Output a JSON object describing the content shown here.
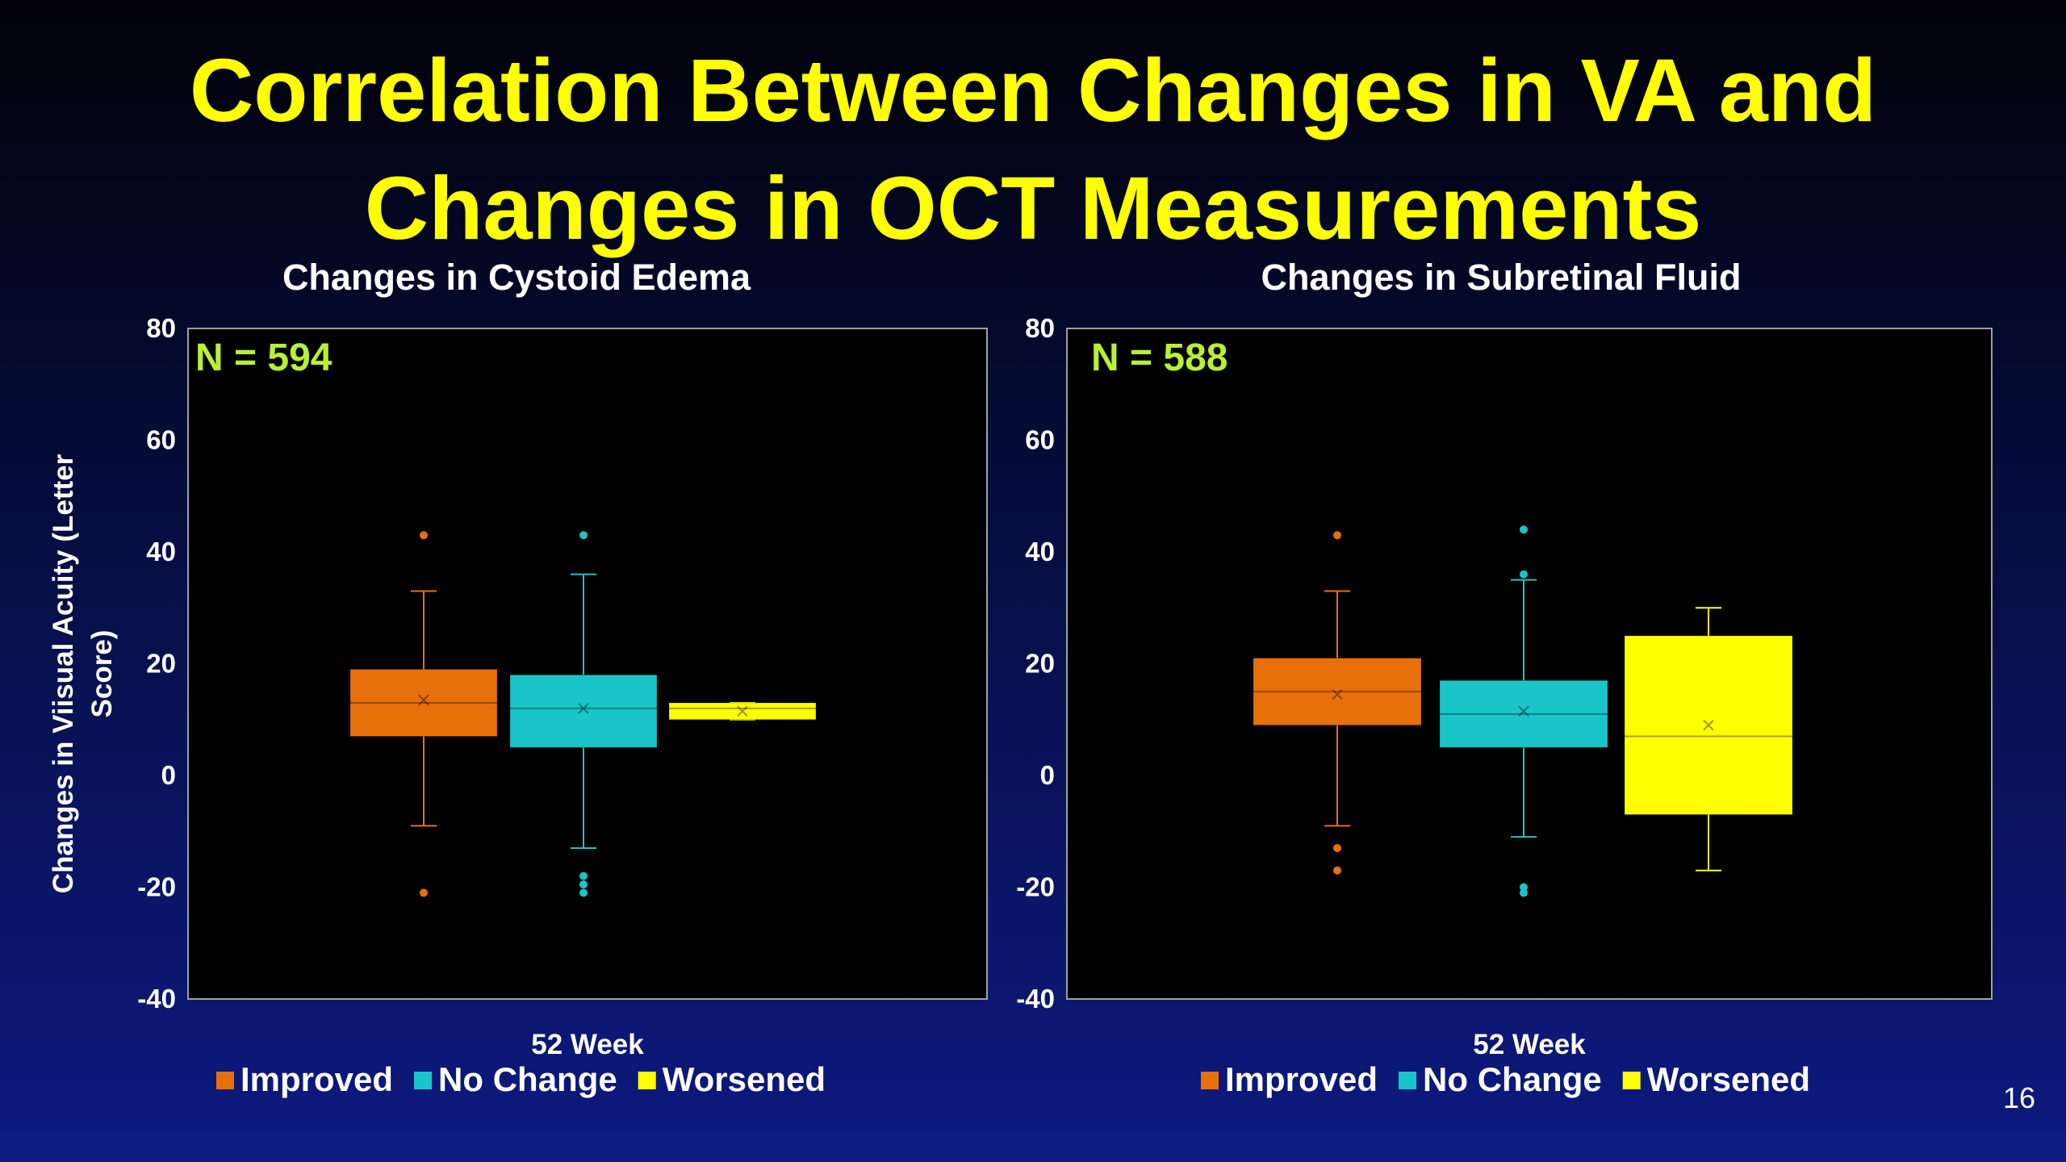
{
  "slide": {
    "title_line1": "Correlation Between Changes in VA and",
    "title_line2": "Changes in OCT Measurements",
    "page_number": "16"
  },
  "y_axis_label_line1": "Changes in Viisual Acuity  (Letter",
  "y_axis_label_line2": "Score)",
  "colors": {
    "Improved": "#e8700a",
    "No Change": "#19c5c8",
    "Worsened": "#ffff00",
    "plot_bg": "#000000",
    "axis": "#a0a0a0"
  },
  "chart_data": [
    {
      "type": "box",
      "title": "Changes in Cystoid Edema",
      "annotation": "N = 594",
      "xlabel": "52 Week",
      "ylim": [
        -40,
        80
      ],
      "yticks": [
        80,
        60,
        40,
        20,
        0,
        -20,
        -40
      ],
      "legend": [
        "Improved",
        "No Change",
        "Worsened"
      ],
      "legend_position": "bottom",
      "series": [
        {
          "name": "Improved",
          "whisker_low": -9,
          "q1": 7,
          "median": 13,
          "q3": 19,
          "whisker_high": 33,
          "mean": 13.5,
          "outliers": [
            43,
            -21
          ]
        },
        {
          "name": "No Change",
          "whisker_low": -13,
          "q1": 5,
          "median": 12,
          "q3": 18,
          "whisker_high": 36,
          "mean": 12,
          "outliers": [
            43,
            -18,
            -19.5,
            -21
          ]
        },
        {
          "name": "Worsened",
          "whisker_low": 10,
          "q1": 10,
          "median": 12,
          "q3": 13,
          "whisker_high": 13,
          "mean": 11.5,
          "outliers": []
        }
      ]
    },
    {
      "type": "box",
      "title": "Changes in Subretinal Fluid",
      "annotation": "N = 588",
      "xlabel": "52 Week",
      "ylim": [
        -40,
        80
      ],
      "yticks": [
        80,
        60,
        40,
        20,
        0,
        -20,
        -40
      ],
      "legend": [
        "Improved",
        "No Change",
        "Worsened"
      ],
      "legend_position": "bottom",
      "series": [
        {
          "name": "Improved",
          "whisker_low": -9,
          "q1": 9,
          "median": 15,
          "q3": 21,
          "whisker_high": 33,
          "mean": 14.5,
          "outliers": [
            43,
            -13,
            -17
          ]
        },
        {
          "name": "No Change",
          "whisker_low": -11,
          "q1": 5,
          "median": 11,
          "q3": 17,
          "whisker_high": 35,
          "mean": 11.5,
          "outliers": [
            44,
            36,
            -20,
            -21
          ]
        },
        {
          "name": "Worsened",
          "whisker_low": -17,
          "q1": -7,
          "median": 7,
          "q3": 25,
          "whisker_high": 30,
          "mean": 9,
          "outliers": []
        }
      ]
    }
  ]
}
